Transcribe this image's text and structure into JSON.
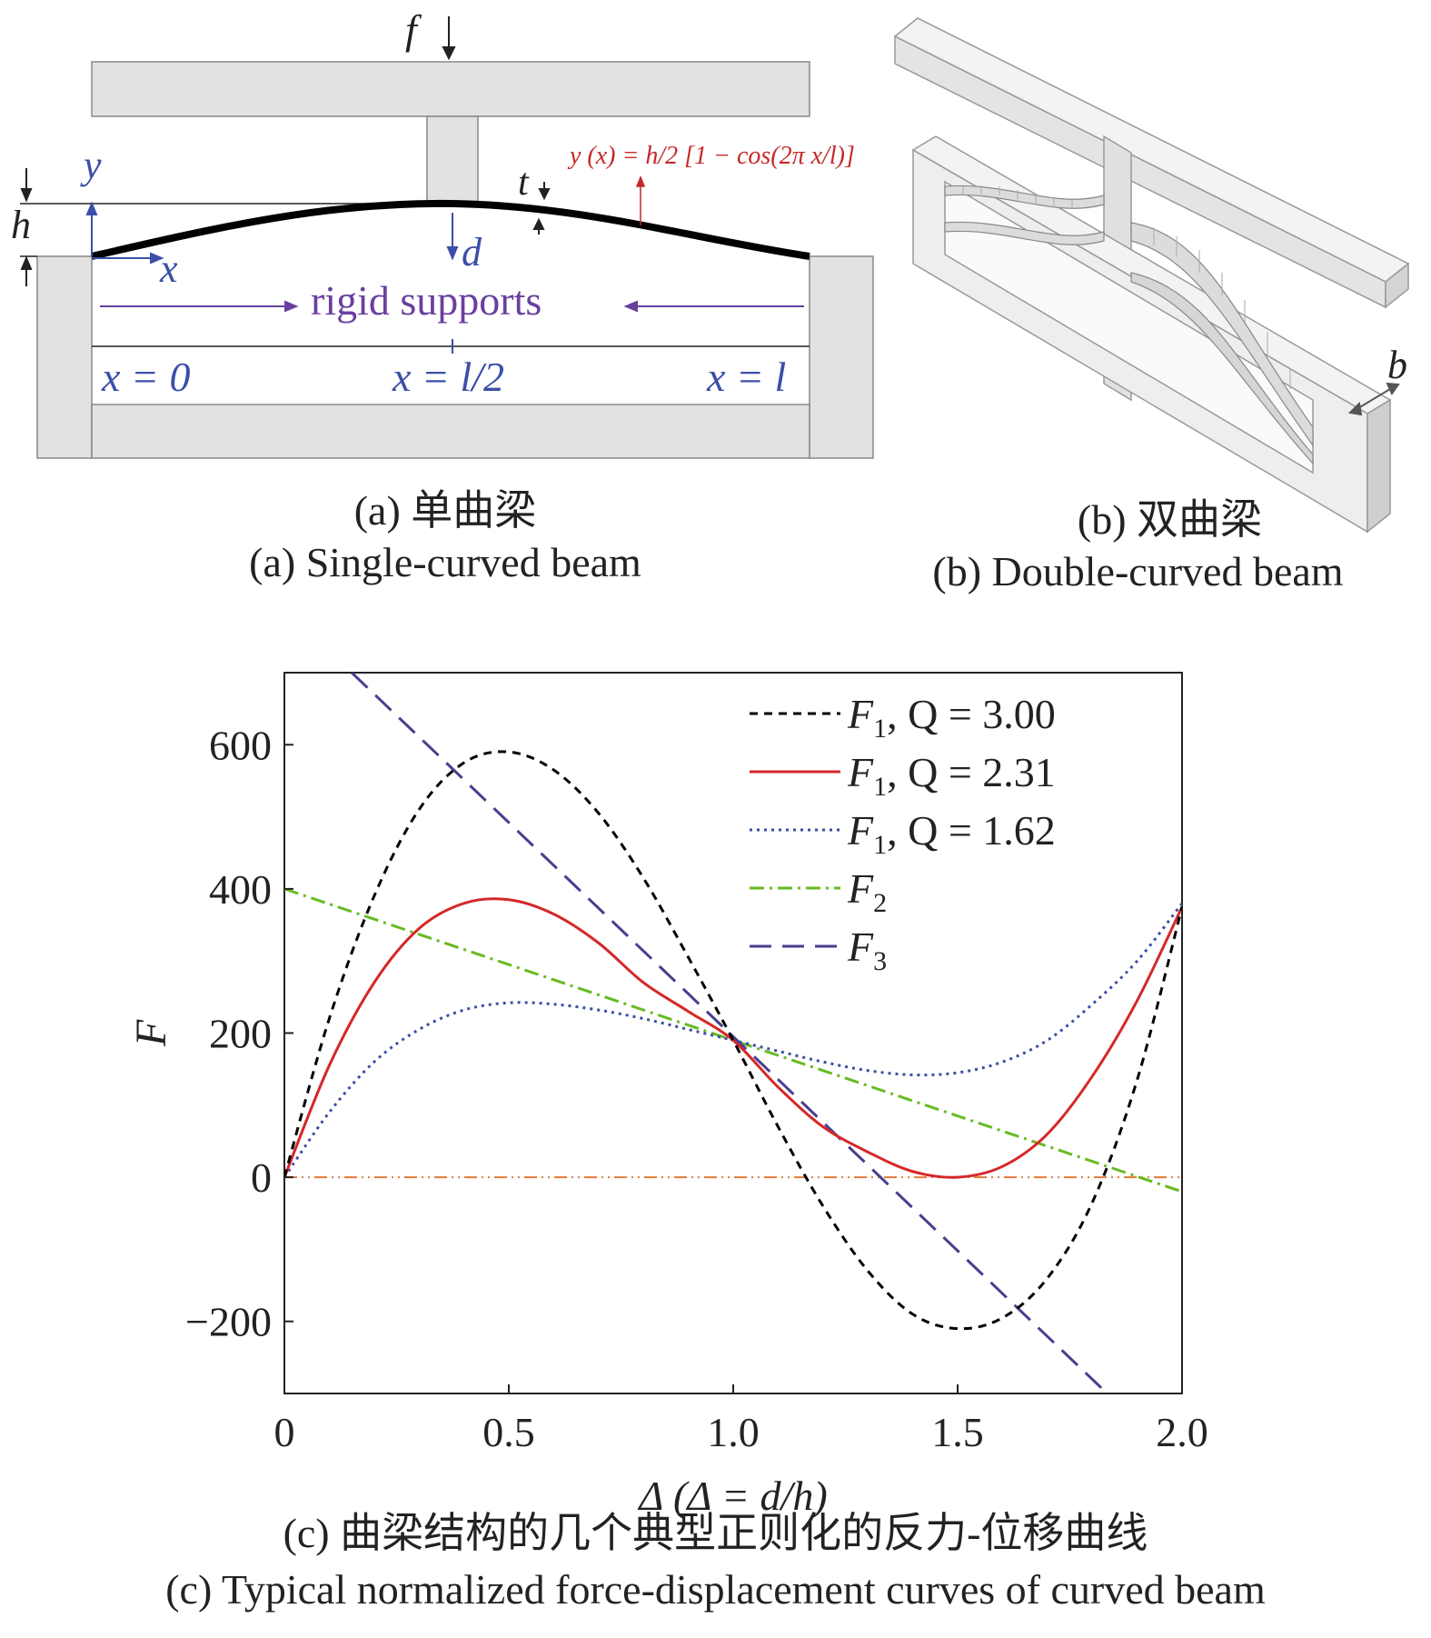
{
  "panel_a": {
    "force_label": "f",
    "y_label": "y",
    "x_label": "x",
    "h_label": "h",
    "t_label": "t",
    "d_label": "d",
    "equation": "y (x) = h/2 [1 − cos(2π x/l)]",
    "supports_label": "rigid supports",
    "x0_label": "x = 0",
    "xmid_label": "x = l/2",
    "xl_label": "x = l",
    "caption_cn": "(a) 单曲梁",
    "caption_en": "(a) Single-curved beam"
  },
  "panel_b": {
    "b_label": "b",
    "caption_cn": "(b) 双曲梁",
    "caption_en": "(b) Double-curved beam"
  },
  "panel_c": {
    "caption_cn": "(c) 曲梁结构的几个典型正则化的反力-位移曲线",
    "caption_en": "(c) Typical normalized force-displacement curves of curved beam"
  },
  "chart_data": {
    "type": "line",
    "title": "",
    "xlabel": "Δ (Δ = d/h)",
    "ylabel": "F",
    "xlim": [
      0,
      2.0
    ],
    "ylim": [
      -300,
      700
    ],
    "xticks": [
      0,
      0.5,
      1.0,
      1.5,
      2.0
    ],
    "xtick_labels": [
      "0",
      "0.5",
      "1.0",
      "1.5",
      "2.0"
    ],
    "yticks": [
      -200,
      0,
      200,
      400,
      600
    ],
    "ytick_labels": [
      "−200",
      "0",
      "200",
      "400",
      "600"
    ],
    "grid": false,
    "legend_position": "top-right",
    "series": [
      {
        "name": "F1, Q = 3.00",
        "label_main": "F",
        "label_sub": "1",
        "label_rest": ", Q = 3.00",
        "color": "#000000",
        "dash": "dashed-short",
        "x": [
          0,
          0.1,
          0.2,
          0.3,
          0.4,
          0.5,
          0.6,
          0.7,
          0.8,
          0.9,
          1.0,
          1.1,
          1.2,
          1.3,
          1.4,
          1.5,
          1.6,
          1.7,
          1.8,
          1.9,
          2.0
        ],
        "y": [
          0,
          220,
          390,
          510,
          575,
          590,
          565,
          505,
          415,
          305,
          190,
          70,
          -40,
          -130,
          -190,
          -210,
          -195,
          -140,
          -35,
          135,
          375
        ]
      },
      {
        "name": "F1, Q = 2.31",
        "label_main": "F",
        "label_sub": "1",
        "label_rest": ", Q = 2.31",
        "color": "#d62728",
        "dash": "solid",
        "x": [
          0,
          0.1,
          0.2,
          0.3,
          0.4,
          0.5,
          0.6,
          0.7,
          0.8,
          0.9,
          1.0,
          1.1,
          1.2,
          1.3,
          1.4,
          1.5,
          1.6,
          1.7,
          1.8,
          1.9,
          2.0
        ],
        "y": [
          0,
          155,
          270,
          345,
          380,
          385,
          365,
          325,
          270,
          230,
          190,
          125,
          70,
          35,
          8,
          0,
          15,
          60,
          140,
          245,
          375
        ]
      },
      {
        "name": "F1, Q = 1.62",
        "label_main": "F",
        "label_sub": "1",
        "label_rest": ", Q = 1.62",
        "color": "#3b4fa8",
        "dash": "dotted",
        "x": [
          0,
          0.1,
          0.2,
          0.3,
          0.4,
          0.5,
          0.6,
          0.7,
          0.8,
          0.9,
          1.0,
          1.1,
          1.2,
          1.3,
          1.4,
          1.5,
          1.6,
          1.7,
          1.8,
          1.9,
          2.0
        ],
        "y": [
          0,
          90,
          160,
          205,
          232,
          242,
          240,
          232,
          220,
          205,
          190,
          175,
          160,
          148,
          142,
          145,
          160,
          190,
          240,
          300,
          380
        ]
      },
      {
        "name": "F2",
        "label_main": "F",
        "label_sub": "2",
        "label_rest": "",
        "color": "#66bb22",
        "dash": "dash-dot",
        "x": [
          0,
          2.0
        ],
        "y": [
          400,
          -20
        ]
      },
      {
        "name": "F3",
        "label_main": "F",
        "label_sub": "3",
        "label_rest": "",
        "color": "#4a3e8f",
        "dash": "dashed-long",
        "x": [
          0.15,
          1.85
        ],
        "y": [
          700,
          -310
        ]
      },
      {
        "name": "",
        "label_main": "",
        "label_sub": "",
        "label_rest": "",
        "color": "#e07b39",
        "dash": "dash-dot-dot",
        "x": [
          0,
          2.0
        ],
        "y": [
          0,
          0
        ]
      }
    ]
  }
}
